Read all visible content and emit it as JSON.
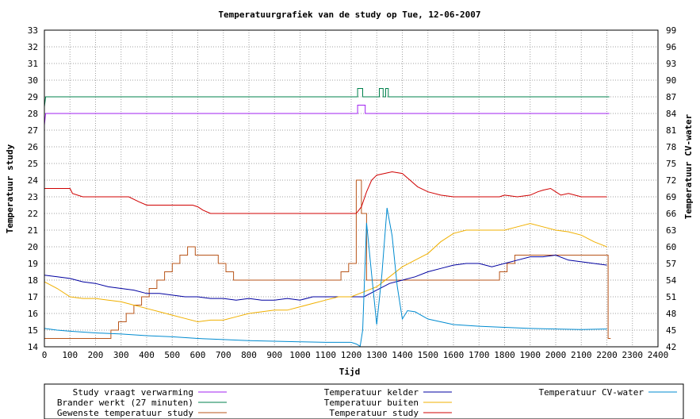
{
  "chart_data": {
    "type": "line",
    "title": "Temperatuurgrafiek van de study op Tue, 12-06-2007",
    "xlabel": "Tijd",
    "ylabel": "Temperatuur study",
    "y2label": "Temperatuur CV-water",
    "xlim": [
      0,
      2400
    ],
    "ylim": [
      14,
      33
    ],
    "y2lim": [
      42,
      99
    ],
    "xticks": [
      0,
      100,
      200,
      300,
      400,
      500,
      600,
      700,
      800,
      900,
      1000,
      1100,
      1200,
      1300,
      1400,
      1500,
      1600,
      1700,
      1800,
      1900,
      2000,
      2100,
      2200,
      2300,
      2400
    ],
    "yticks": [
      14,
      15,
      16,
      17,
      18,
      19,
      20,
      21,
      22,
      23,
      24,
      25,
      26,
      27,
      28,
      29,
      30,
      31,
      32,
      33
    ],
    "y2ticks": [
      42,
      45,
      48,
      51,
      54,
      57,
      60,
      63,
      66,
      69,
      72,
      75,
      78,
      81,
      84,
      87,
      90,
      93,
      96,
      99
    ],
    "grid": true,
    "legend_position": "bottom",
    "series": [
      {
        "name": "Study vraagt verwarming",
        "color": "#a020f0",
        "axis": "y1",
        "x": [
          0,
          5,
          5,
          1225,
          1225,
          1255,
          1255,
          2210
        ],
        "y": [
          27.3,
          28,
          28,
          28,
          28.5,
          28.5,
          28,
          28
        ]
      },
      {
        "name": "Brander werkt (27 minuten)",
        "color": "#00804c",
        "axis": "y1",
        "x": [
          0,
          5,
          5,
          1225,
          1225,
          1245,
          1245,
          1310,
          1310,
          1325,
          1325,
          1335,
          1335,
          1345,
          1345,
          2210
        ],
        "y": [
          28.4,
          29,
          29,
          29,
          29.5,
          29.5,
          29,
          29,
          29.5,
          29.5,
          29,
          29,
          29.5,
          29.5,
          29,
          29
        ]
      },
      {
        "name": "Gewenste temperatuur study",
        "color": "#b8551a",
        "axis": "y1",
        "x": [
          0,
          260,
          260,
          290,
          290,
          320,
          320,
          350,
          350,
          380,
          380,
          410,
          410,
          440,
          440,
          470,
          470,
          500,
          500,
          530,
          530,
          560,
          560,
          590,
          590,
          680,
          680,
          710,
          710,
          740,
          740,
          770,
          770,
          800,
          800,
          1160,
          1160,
          1190,
          1190,
          1220,
          1220,
          1240,
          1240,
          1260,
          1260,
          1290,
          1290,
          1780,
          1780,
          1810,
          1810,
          1840,
          1840,
          2205,
          2205,
          2215
        ],
        "y": [
          14.5,
          14.5,
          15,
          15,
          15.5,
          15.5,
          16,
          16,
          16.5,
          16.5,
          17,
          17,
          17.5,
          17.5,
          18,
          18,
          18.5,
          18.5,
          19,
          19,
          19.5,
          19.5,
          20,
          20,
          19.5,
          19.5,
          19,
          19,
          18.5,
          18.5,
          18,
          18,
          18,
          18,
          18,
          18,
          18.5,
          18.5,
          19,
          19,
          24,
          24,
          22,
          22,
          18,
          18,
          18,
          18,
          18.5,
          18.5,
          19,
          19,
          19.5,
          19.5,
          14.5,
          14.5
        ]
      },
      {
        "name": "Temperatuur kelder",
        "color": "#0000a0",
        "axis": "y1",
        "x": [
          0,
          50,
          100,
          150,
          200,
          250,
          300,
          350,
          400,
          450,
          500,
          550,
          600,
          650,
          700,
          750,
          800,
          850,
          900,
          950,
          1000,
          1050,
          1100,
          1150,
          1200,
          1250,
          1300,
          1350,
          1400,
          1450,
          1500,
          1550,
          1600,
          1650,
          1700,
          1750,
          1800,
          1850,
          1900,
          1950,
          2000,
          2050,
          2100,
          2150,
          2200
        ],
        "y": [
          18.3,
          18.2,
          18.1,
          17.9,
          17.8,
          17.6,
          17.5,
          17.4,
          17.2,
          17.2,
          17.1,
          17.0,
          17.0,
          16.9,
          16.9,
          16.8,
          16.9,
          16.8,
          16.8,
          16.9,
          16.8,
          17.0,
          17.0,
          17.0,
          17.0,
          17.0,
          17.4,
          17.8,
          18.0,
          18.2,
          18.5,
          18.7,
          18.9,
          19.0,
          19.0,
          18.8,
          19.0,
          19.2,
          19.4,
          19.4,
          19.5,
          19.2,
          19.1,
          19.0,
          18.9
        ]
      },
      {
        "name": "Temperatuur buiten",
        "color": "#f0b000",
        "axis": "y1",
        "x": [
          0,
          50,
          100,
          150,
          200,
          250,
          300,
          350,
          400,
          450,
          500,
          550,
          600,
          650,
          700,
          750,
          800,
          850,
          900,
          950,
          1000,
          1050,
          1100,
          1150,
          1200,
          1250,
          1300,
          1350,
          1400,
          1450,
          1500,
          1550,
          1600,
          1650,
          1700,
          1750,
          1800,
          1850,
          1900,
          1950,
          2000,
          2050,
          2100,
          2150,
          2200
        ],
        "y": [
          17.9,
          17.5,
          17.0,
          16.9,
          16.9,
          16.8,
          16.7,
          16.5,
          16.3,
          16.1,
          15.9,
          15.7,
          15.5,
          15.6,
          15.6,
          15.8,
          16.0,
          16.1,
          16.2,
          16.2,
          16.4,
          16.6,
          16.8,
          17.0,
          17.0,
          17.3,
          17.6,
          18.2,
          18.8,
          19.2,
          19.6,
          20.3,
          20.8,
          21.0,
          21.0,
          21.0,
          21.0,
          21.2,
          21.4,
          21.2,
          21.0,
          20.9,
          20.7,
          20.3,
          20.0
        ]
      },
      {
        "name": "Temperatuur study",
        "color": "#d00000",
        "axis": "y1",
        "x": [
          0,
          50,
          100,
          110,
          150,
          200,
          250,
          300,
          330,
          370,
          400,
          450,
          500,
          550,
          580,
          600,
          620,
          650,
          700,
          750,
          800,
          850,
          900,
          950,
          1000,
          1050,
          1100,
          1150,
          1200,
          1220,
          1240,
          1260,
          1280,
          1300,
          1330,
          1360,
          1400,
          1430,
          1460,
          1500,
          1550,
          1600,
          1650,
          1700,
          1750,
          1780,
          1800,
          1850,
          1900,
          1930,
          1950,
          1980,
          2000,
          2020,
          2050,
          2100,
          2150,
          2200
        ],
        "y": [
          23.5,
          23.5,
          23.5,
          23.2,
          23.0,
          23.0,
          23.0,
          23.0,
          23.0,
          22.7,
          22.5,
          22.5,
          22.5,
          22.5,
          22.5,
          22.4,
          22.2,
          22.0,
          22.0,
          22.0,
          22.0,
          22.0,
          22.0,
          22.0,
          22.0,
          22.0,
          22.0,
          22.0,
          22.0,
          22.0,
          22.4,
          23.3,
          24.0,
          24.3,
          24.4,
          24.5,
          24.4,
          24.0,
          23.6,
          23.3,
          23.1,
          23.0,
          23.0,
          23.0,
          23.0,
          23.0,
          23.1,
          23.0,
          23.1,
          23.3,
          23.4,
          23.5,
          23.3,
          23.1,
          23.2,
          23.0,
          23.0,
          23.0
        ]
      },
      {
        "name": "Temperatuur CV-water",
        "color": "#008bd0",
        "axis": "y2",
        "x": [
          0,
          50,
          100,
          200,
          300,
          400,
          500,
          600,
          700,
          800,
          900,
          1000,
          1100,
          1200,
          1220,
          1235,
          1245,
          1260,
          1280,
          1300,
          1320,
          1340,
          1360,
          1380,
          1400,
          1420,
          1450,
          1500,
          1600,
          1700,
          1800,
          1900,
          2000,
          2100,
          2200
        ],
        "y": [
          45.3,
          45.0,
          44.8,
          44.5,
          44.3,
          44.0,
          43.8,
          43.5,
          43.3,
          43.1,
          43.0,
          42.9,
          42.8,
          42.8,
          42.5,
          42.1,
          45.0,
          64.3,
          55.0,
          46.0,
          55.0,
          67.0,
          62.0,
          53.0,
          47.0,
          48.5,
          48.3,
          47.0,
          46.0,
          45.7,
          45.5,
          45.3,
          45.2,
          45.1,
          45.2
        ]
      }
    ]
  }
}
